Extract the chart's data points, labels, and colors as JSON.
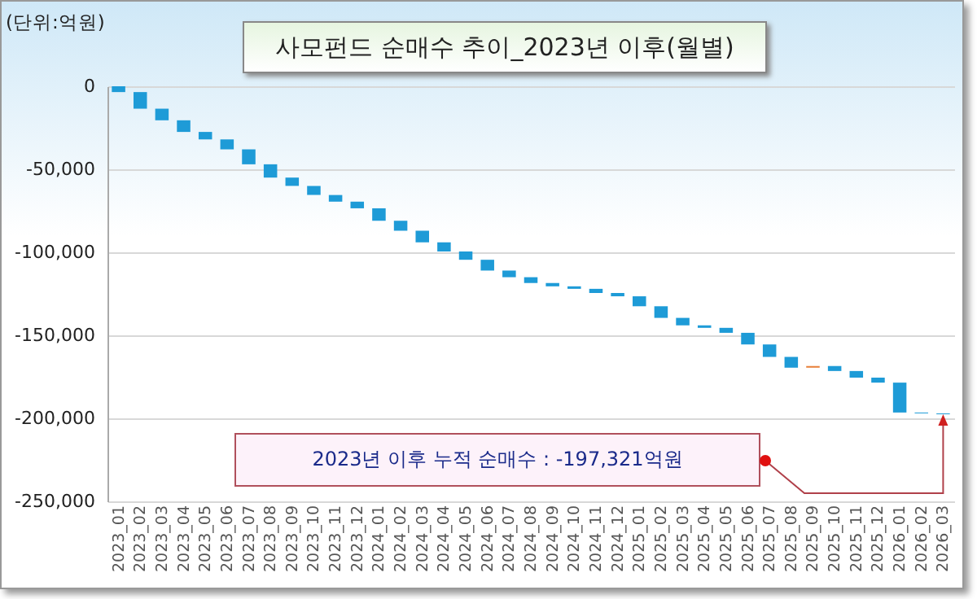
{
  "chart_data": {
    "type": "bar",
    "title": "사모펀드 순매수 추이_2023년 이후(월별)",
    "ylabel": "(단위:억원)",
    "categories": [
      "2023_01",
      "2023_02",
      "2023_03",
      "2023_04",
      "2023_05",
      "2023_06",
      "2023_07",
      "2023_08",
      "2023_09",
      "2023_10",
      "2023_11",
      "2023_12",
      "2024_01",
      "2024_02",
      "2024_03",
      "2024_04",
      "2024_05",
      "2024_06",
      "2024_07",
      "2024_08",
      "2024_09",
      "2024_10",
      "2024_11",
      "2024_12",
      "2025_01",
      "2025_02",
      "2025_03",
      "2025_04",
      "2025_05",
      "2025_06",
      "2025_07",
      "2025_08",
      "2025_09",
      "2025_10",
      "2025_11",
      "2025_12",
      "2026_01",
      "2026_02",
      "2026_03"
    ],
    "base": [
      0,
      -3500,
      -13500,
      -20500,
      -27500,
      -32000,
      -38000,
      -47000,
      -55000,
      -60000,
      -65500,
      -69500,
      -73500,
      -81000,
      -87000,
      -94000,
      -99500,
      -104500,
      -111000,
      -115000,
      -118500,
      -120500,
      -122000,
      -124500,
      -126500,
      -132500,
      -139500,
      -144000,
      -145500,
      -148500,
      -155500,
      -163000,
      -169500,
      -168500,
      -171500,
      -175500,
      -178500,
      -196500,
      -197000
    ],
    "values": [
      -3500,
      -10000,
      -7000,
      -7000,
      -4500,
      -6000,
      -9000,
      -8000,
      -5000,
      -5500,
      -4000,
      -4000,
      -7500,
      -6000,
      -7000,
      -5500,
      -5000,
      -6500,
      -4000,
      -3500,
      -2000,
      -1500,
      -2500,
      -2000,
      -6000,
      -7000,
      -4500,
      -1500,
      -3000,
      -7000,
      -7500,
      -6500,
      1000,
      -3000,
      -4000,
      -3000,
      -18000,
      -500,
      -500
    ],
    "colors": [
      "#1e9bd7",
      "#1e9bd7",
      "#1e9bd7",
      "#1e9bd7",
      "#1e9bd7",
      "#1e9bd7",
      "#1e9bd7",
      "#1e9bd7",
      "#1e9bd7",
      "#1e9bd7",
      "#1e9bd7",
      "#1e9bd7",
      "#1e9bd7",
      "#1e9bd7",
      "#1e9bd7",
      "#1e9bd7",
      "#1e9bd7",
      "#1e9bd7",
      "#1e9bd7",
      "#1e9bd7",
      "#1e9bd7",
      "#1e9bd7",
      "#1e9bd7",
      "#1e9bd7",
      "#1e9bd7",
      "#1e9bd7",
      "#1e9bd7",
      "#1e9bd7",
      "#1e9bd7",
      "#1e9bd7",
      "#1e9bd7",
      "#1e9bd7",
      "#e8803a",
      "#1e9bd7",
      "#1e9bd7",
      "#1e9bd7",
      "#1e9bd7",
      "#1e9bd7",
      "#1e9bd7"
    ],
    "ylim": [
      -250000,
      0
    ],
    "yticks": [
      {
        "value": -250000,
        "label": "-250,000"
      },
      {
        "value": -200000,
        "label": "-200,000"
      },
      {
        "value": -150000,
        "label": "-150,000"
      },
      {
        "value": -100000,
        "label": "-100,000"
      },
      {
        "value": -50000,
        "label": "-50,000"
      },
      0
    ],
    "grid": "y",
    "annotations": [
      "2023년 이후 누적 순매수 : -197,321억원"
    ]
  }
}
